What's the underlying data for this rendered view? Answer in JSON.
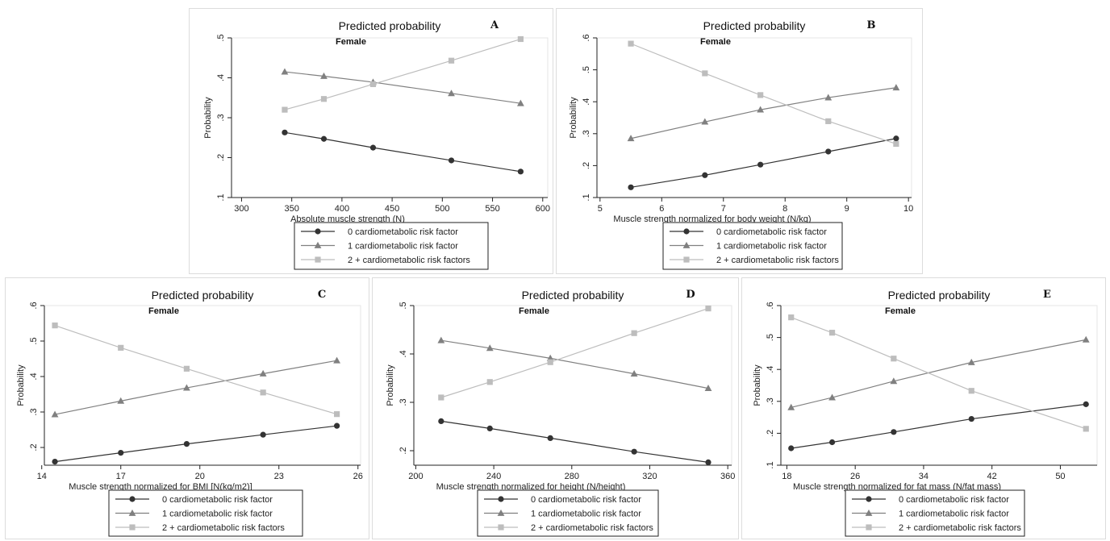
{
  "chart_data": [
    {
      "type": "line",
      "panel_letter": "A",
      "title": "Predicted probability",
      "subtitle": "Female",
      "xlabel": "Absolute muscle strength (N)",
      "ylabel": "Probability",
      "xlim": [
        290,
        605
      ],
      "ylim": [
        0.1,
        0.5
      ],
      "xticks": [
        300,
        350,
        400,
        450,
        500,
        550,
        600
      ],
      "xticklabels": [
        "300",
        "350",
        "400",
        "450",
        "500",
        "550",
        "600"
      ],
      "yticks": [
        0.1,
        0.2,
        0.3,
        0.4,
        0.5
      ],
      "yticklabels": [
        ".1",
        ".2",
        ".3",
        ".4",
        ".5"
      ],
      "x": [
        343,
        382,
        431,
        509,
        578
      ],
      "series": [
        {
          "name": "0 cardiometabolic risk factor",
          "values": [
            0.263,
            0.247,
            0.225,
            0.193,
            0.165
          ],
          "color": "#333333",
          "marker": "circle"
        },
        {
          "name": "1 cardiometabolic risk factor",
          "values": [
            0.415,
            0.404,
            0.389,
            0.361,
            0.336
          ],
          "color": "#808080",
          "marker": "triangle"
        },
        {
          "name": "2 + cardiometabolic risk factors",
          "values": [
            0.32,
            0.347,
            0.384,
            0.443,
            0.497
          ],
          "color": "#bdbdbd",
          "marker": "square"
        }
      ],
      "grid": false,
      "legend_position": "bottom"
    },
    {
      "type": "line",
      "panel_letter": "B",
      "title": "Predicted probability",
      "subtitle": "Female",
      "xlabel": "Muscle strength normalized for body weight (N/kg)",
      "ylabel": "Probability",
      "xlim": [
        4.95,
        10.05
      ],
      "ylim": [
        0.1,
        0.6
      ],
      "xticks": [
        5,
        6,
        7,
        8,
        9,
        10
      ],
      "xticklabels": [
        "5",
        "6",
        "7",
        "8",
        "9",
        "10"
      ],
      "yticks": [
        0.1,
        0.2,
        0.3,
        0.4,
        0.5,
        0.6
      ],
      "yticklabels": [
        ".1",
        ".2",
        ".3",
        ".4",
        ".5",
        ".6"
      ],
      "x": [
        5.5,
        6.7,
        7.6,
        8.7,
        9.8
      ],
      "series": [
        {
          "name": "0 cardiometabolic risk factor",
          "values": [
            0.132,
            0.17,
            0.203,
            0.244,
            0.285
          ],
          "color": "#333333",
          "marker": "circle"
        },
        {
          "name": "1 cardiometabolic risk factor",
          "values": [
            0.285,
            0.337,
            0.375,
            0.413,
            0.444
          ],
          "color": "#808080",
          "marker": "triangle"
        },
        {
          "name": "2 + cardiometabolic risk factors",
          "values": [
            0.582,
            0.489,
            0.421,
            0.339,
            0.268
          ],
          "color": "#bdbdbd",
          "marker": "square"
        }
      ],
      "grid": false,
      "legend_position": "bottom"
    },
    {
      "type": "line",
      "panel_letter": "C",
      "title": "Predicted probability",
      "subtitle": "Female",
      "xlabel": "Muscle strength normalized for BMI [N(kg/m2)]",
      "ylabel": "Probability",
      "xlim": [
        14.1,
        26.1
      ],
      "ylim": [
        0.15,
        0.6
      ],
      "xticks": [
        14,
        17,
        20,
        23,
        26
      ],
      "xticklabels": [
        "14",
        "17",
        "20",
        "23",
        "26"
      ],
      "yticks": [
        0.2,
        0.3,
        0.4,
        0.5,
        0.6
      ],
      "yticklabels": [
        ".2",
        ".3",
        ".4",
        ".5",
        ".6"
      ],
      "x": [
        14.5,
        17.0,
        19.5,
        22.4,
        25.2
      ],
      "series": [
        {
          "name": "0 cardiometabolic risk factor",
          "values": [
            0.16,
            0.185,
            0.21,
            0.236,
            0.261
          ],
          "color": "#333333",
          "marker": "circle"
        },
        {
          "name": "1 cardiometabolic risk factor",
          "values": [
            0.293,
            0.331,
            0.368,
            0.408,
            0.445
          ],
          "color": "#808080",
          "marker": "triangle"
        },
        {
          "name": "2 + cardiometabolic risk factors",
          "values": [
            0.544,
            0.481,
            0.422,
            0.355,
            0.294
          ],
          "color": "#bdbdbd",
          "marker": "square"
        }
      ],
      "grid": false,
      "legend_position": "bottom"
    },
    {
      "type": "line",
      "panel_letter": "D",
      "title": "Predicted probability",
      "subtitle": "Female",
      "xlabel": "Muscle strength normalized for height (N/height)",
      "ylabel": "Probability",
      "xlim": [
        199,
        362
      ],
      "ylim": [
        0.17,
        0.5
      ],
      "xticks": [
        200,
        240,
        280,
        320,
        360
      ],
      "xticklabels": [
        "200",
        "240",
        "280",
        "320",
        "360"
      ],
      "yticks": [
        0.2,
        0.3,
        0.4,
        0.5
      ],
      "yticklabels": [
        ".2",
        ".3",
        ".4",
        ".5"
      ],
      "x": [
        213,
        238,
        269,
        312,
        350
      ],
      "series": [
        {
          "name": "0 cardiometabolic risk factor",
          "values": [
            0.261,
            0.246,
            0.226,
            0.198,
            0.176
          ],
          "color": "#333333",
          "marker": "circle"
        },
        {
          "name": "1 cardiometabolic risk factor",
          "values": [
            0.428,
            0.412,
            0.391,
            0.359,
            0.329
          ],
          "color": "#808080",
          "marker": "triangle"
        },
        {
          "name": "2 + cardiometabolic risk factors",
          "values": [
            0.31,
            0.342,
            0.383,
            0.443,
            0.494
          ],
          "color": "#bdbdbd",
          "marker": "square"
        }
      ],
      "grid": false,
      "legend_position": "bottom"
    },
    {
      "type": "line",
      "panel_letter": "E",
      "title": "Predicted probability",
      "subtitle": "Female",
      "xlabel": "Muscle strength normalized for fat mass (N/fat mass)",
      "ylabel": "Probability",
      "xlim": [
        17.3,
        54.3
      ],
      "ylim": [
        0.1,
        0.6
      ],
      "xticks": [
        18,
        26,
        34,
        42,
        50
      ],
      "xticklabels": [
        "18",
        "26",
        "34",
        "42",
        "50"
      ],
      "yticks": [
        0.1,
        0.2,
        0.3,
        0.4,
        0.5,
        0.6
      ],
      "yticklabels": [
        ".1",
        ".2",
        ".3",
        ".4",
        ".5",
        ".6"
      ],
      "x": [
        18.5,
        23.3,
        30.5,
        39.6,
        53.0
      ],
      "series": [
        {
          "name": "0 cardiometabolic risk factor",
          "values": [
            0.153,
            0.172,
            0.204,
            0.245,
            0.291
          ],
          "color": "#333333",
          "marker": "circle"
        },
        {
          "name": "1 cardiometabolic risk factor",
          "values": [
            0.281,
            0.312,
            0.363,
            0.422,
            0.493
          ],
          "color": "#808080",
          "marker": "triangle"
        },
        {
          "name": "2 + cardiometabolic risk factors",
          "values": [
            0.563,
            0.515,
            0.434,
            0.333,
            0.214
          ],
          "color": "#bdbdbd",
          "marker": "square"
        }
      ],
      "grid": false,
      "legend_position": "bottom"
    }
  ]
}
